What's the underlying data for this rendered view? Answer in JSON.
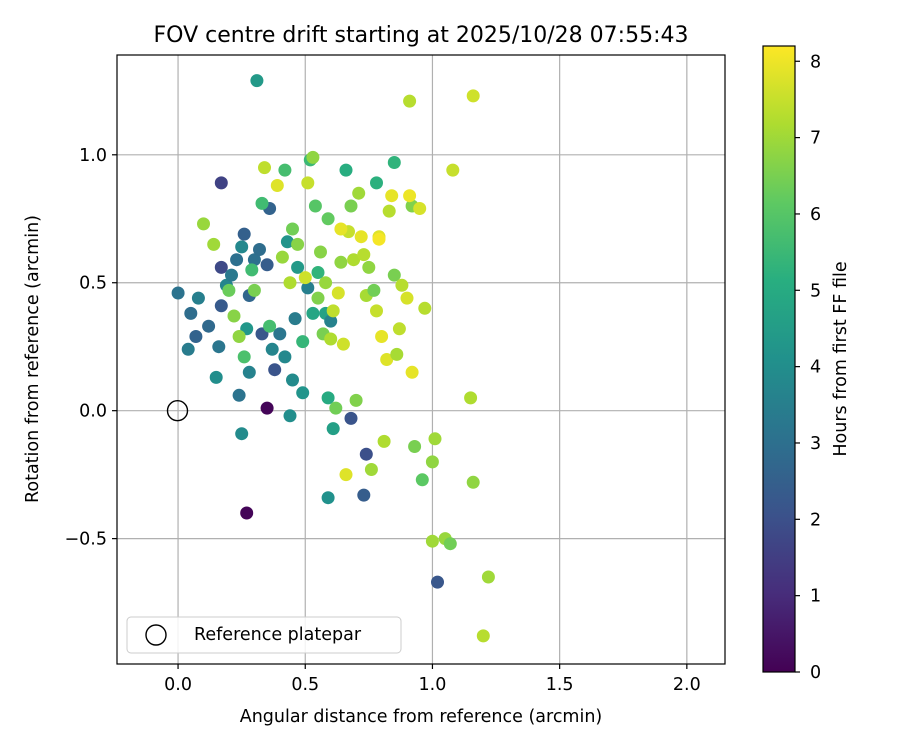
{
  "chart_data": {
    "type": "scatter",
    "title": "FOV centre drift starting at 2025/10/28 07:55:43",
    "xlabel": "Angular distance from reference (arcmin)",
    "ylabel": "Rotation from reference (arcmin)",
    "xlim": [
      -0.24,
      2.15
    ],
    "ylim": [
      -0.99,
      1.39
    ],
    "xticks": [
      0.0,
      0.5,
      1.0,
      1.5,
      2.0
    ],
    "xtick_labels": [
      "0.0",
      "0.5",
      "1.0",
      "1.5",
      "2.0"
    ],
    "yticks": [
      -0.5,
      0.0,
      0.5,
      1.0
    ],
    "ytick_labels": [
      "−0.5",
      "0.0",
      "0.5",
      "1.0"
    ],
    "grid": true,
    "colorbar": {
      "label": "Hours from first FF file",
      "range": [
        0,
        8.2
      ],
      "ticks": [
        0,
        1,
        2,
        3,
        4,
        5,
        6,
        7,
        8
      ],
      "tick_labels": [
        "0",
        "1",
        "2",
        "3",
        "4",
        "5",
        "6",
        "7",
        "8"
      ],
      "colormap": "viridis"
    },
    "legend": {
      "label": "Reference platepar",
      "position": "lower-left"
    },
    "reference_point": {
      "x": 0.0,
      "y": 0.0
    },
    "points": [
      {
        "x": 0.27,
        "y": -0.4,
        "h": 0.1
      },
      {
        "x": 0.35,
        "y": 0.01,
        "h": 0.1
      },
      {
        "x": 0.17,
        "y": 0.89,
        "h": 1.6
      },
      {
        "x": 1.02,
        "y": -0.67,
        "h": 2.2
      },
      {
        "x": 0.74,
        "y": -0.17,
        "h": 2.0
      },
      {
        "x": 0.68,
        "y": -0.03,
        "h": 2.1
      },
      {
        "x": 0.73,
        "y": -0.33,
        "h": 2.4
      },
      {
        "x": 0.25,
        "y": -0.09,
        "h": 3.9
      },
      {
        "x": 0.31,
        "y": 1.29,
        "h": 4.4
      },
      {
        "x": 0.59,
        "y": -0.34,
        "h": 4.1
      },
      {
        "x": 0.61,
        "y": -0.07,
        "h": 4.6
      },
      {
        "x": 0.0,
        "y": 0.46,
        "h": 3.1
      },
      {
        "x": 0.04,
        "y": 0.24,
        "h": 3.4
      },
      {
        "x": 0.05,
        "y": 0.38,
        "h": 2.9
      },
      {
        "x": 0.07,
        "y": 0.29,
        "h": 2.6
      },
      {
        "x": 0.08,
        "y": 0.44,
        "h": 3.5
      },
      {
        "x": 0.12,
        "y": 0.33,
        "h": 2.8
      },
      {
        "x": 0.15,
        "y": 0.13,
        "h": 4.0
      },
      {
        "x": 0.16,
        "y": 0.25,
        "h": 3.2
      },
      {
        "x": 0.17,
        "y": 0.56,
        "h": 1.8
      },
      {
        "x": 0.17,
        "y": 0.41,
        "h": 2.3
      },
      {
        "x": 0.19,
        "y": 0.49,
        "h": 3.7
      },
      {
        "x": 0.21,
        "y": 0.53,
        "h": 3.3
      },
      {
        "x": 0.23,
        "y": 0.59,
        "h": 3.0
      },
      {
        "x": 0.24,
        "y": 0.06,
        "h": 3.1
      },
      {
        "x": 0.25,
        "y": 0.64,
        "h": 3.8
      },
      {
        "x": 0.26,
        "y": 0.69,
        "h": 2.5
      },
      {
        "x": 0.27,
        "y": 0.32,
        "h": 4.3
      },
      {
        "x": 0.28,
        "y": 0.15,
        "h": 3.6
      },
      {
        "x": 0.28,
        "y": 0.45,
        "h": 2.7
      },
      {
        "x": 0.3,
        "y": 0.59,
        "h": 3.0
      },
      {
        "x": 0.32,
        "y": 0.63,
        "h": 2.9
      },
      {
        "x": 0.33,
        "y": 0.3,
        "h": 2.2
      },
      {
        "x": 0.35,
        "y": 0.57,
        "h": 2.4
      },
      {
        "x": 0.36,
        "y": 0.79,
        "h": 2.6
      },
      {
        "x": 0.37,
        "y": 0.24,
        "h": 3.7
      },
      {
        "x": 0.38,
        "y": 0.16,
        "h": 2.1
      },
      {
        "x": 0.4,
        "y": 0.3,
        "h": 3.2
      },
      {
        "x": 0.42,
        "y": 0.21,
        "h": 3.8
      },
      {
        "x": 0.43,
        "y": 0.66,
        "h": 4.2
      },
      {
        "x": 0.44,
        "y": -0.02,
        "h": 4.0
      },
      {
        "x": 0.45,
        "y": 0.12,
        "h": 3.9
      },
      {
        "x": 0.46,
        "y": 0.36,
        "h": 3.4
      },
      {
        "x": 0.47,
        "y": 0.56,
        "h": 4.4
      },
      {
        "x": 0.49,
        "y": 0.07,
        "h": 4.2
      },
      {
        "x": 0.51,
        "y": 0.48,
        "h": 3.5
      },
      {
        "x": 0.53,
        "y": 0.38,
        "h": 4.8
      },
      {
        "x": 0.55,
        "y": 0.54,
        "h": 5.3
      },
      {
        "x": 0.58,
        "y": 0.38,
        "h": 4.7
      },
      {
        "x": 0.59,
        "y": 0.05,
        "h": 5.0
      },
      {
        "x": 0.6,
        "y": 0.35,
        "h": 3.6
      },
      {
        "x": 0.66,
        "y": 0.94,
        "h": 5.1
      },
      {
        "x": 0.78,
        "y": 0.89,
        "h": 5.2
      },
      {
        "x": 0.85,
        "y": 0.97,
        "h": 5.3
      },
      {
        "x": 0.1,
        "y": 0.73,
        "h": 6.9
      },
      {
        "x": 0.14,
        "y": 0.65,
        "h": 7.0
      },
      {
        "x": 0.2,
        "y": 0.47,
        "h": 6.3
      },
      {
        "x": 0.22,
        "y": 0.37,
        "h": 6.7
      },
      {
        "x": 0.24,
        "y": 0.29,
        "h": 6.8
      },
      {
        "x": 0.26,
        "y": 0.21,
        "h": 5.8
      },
      {
        "x": 0.29,
        "y": 0.55,
        "h": 5.6
      },
      {
        "x": 0.3,
        "y": 0.47,
        "h": 6.5
      },
      {
        "x": 0.33,
        "y": 0.81,
        "h": 5.6
      },
      {
        "x": 0.34,
        "y": 0.95,
        "h": 7.4
      },
      {
        "x": 0.36,
        "y": 0.33,
        "h": 5.7
      },
      {
        "x": 0.39,
        "y": 0.88,
        "h": 7.8
      },
      {
        "x": 0.41,
        "y": 0.6,
        "h": 6.9
      },
      {
        "x": 0.42,
        "y": 0.94,
        "h": 5.7
      },
      {
        "x": 0.44,
        "y": 0.5,
        "h": 7.2
      },
      {
        "x": 0.45,
        "y": 0.71,
        "h": 6.4
      },
      {
        "x": 0.47,
        "y": 0.65,
        "h": 6.7
      },
      {
        "x": 0.49,
        "y": 0.27,
        "h": 5.4
      },
      {
        "x": 0.5,
        "y": 0.52,
        "h": 7.6
      },
      {
        "x": 0.51,
        "y": 0.89,
        "h": 7.5
      },
      {
        "x": 0.52,
        "y": 0.98,
        "h": 5.5
      },
      {
        "x": 0.53,
        "y": 0.99,
        "h": 6.8
      },
      {
        "x": 0.54,
        "y": 0.8,
        "h": 6.0
      },
      {
        "x": 0.55,
        "y": 0.44,
        "h": 6.6
      },
      {
        "x": 0.56,
        "y": 0.62,
        "h": 6.7
      },
      {
        "x": 0.57,
        "y": 0.3,
        "h": 6.5
      },
      {
        "x": 0.58,
        "y": 0.5,
        "h": 6.9
      },
      {
        "x": 0.59,
        "y": 0.75,
        "h": 6.2
      },
      {
        "x": 0.6,
        "y": 0.28,
        "h": 7.2
      },
      {
        "x": 0.61,
        "y": 0.39,
        "h": 7.4
      },
      {
        "x": 0.62,
        "y": 0.01,
        "h": 6.4
      },
      {
        "x": 0.63,
        "y": 0.46,
        "h": 7.7
      },
      {
        "x": 0.64,
        "y": 0.58,
        "h": 6.8
      },
      {
        "x": 0.65,
        "y": 0.26,
        "h": 7.6
      },
      {
        "x": 0.66,
        "y": -0.25,
        "h": 7.8
      },
      {
        "x": 0.67,
        "y": 0.7,
        "h": 7.5
      },
      {
        "x": 0.68,
        "y": 0.8,
        "h": 6.5
      },
      {
        "x": 0.69,
        "y": 0.59,
        "h": 7.2
      },
      {
        "x": 0.7,
        "y": 0.04,
        "h": 6.6
      },
      {
        "x": 0.71,
        "y": 0.85,
        "h": 7.0
      },
      {
        "x": 0.72,
        "y": 0.68,
        "h": 7.9
      },
      {
        "x": 0.73,
        "y": 0.61,
        "h": 7.3
      },
      {
        "x": 0.74,
        "y": 0.45,
        "h": 7.1
      },
      {
        "x": 0.75,
        "y": 0.56,
        "h": 6.8
      },
      {
        "x": 0.76,
        "y": -0.23,
        "h": 7.0
      },
      {
        "x": 0.77,
        "y": 0.47,
        "h": 6.4
      },
      {
        "x": 0.78,
        "y": 0.39,
        "h": 7.5
      },
      {
        "x": 0.79,
        "y": 0.68,
        "h": 7.8
      },
      {
        "x": 0.8,
        "y": 0.29,
        "h": 7.9
      },
      {
        "x": 0.81,
        "y": -0.12,
        "h": 7.2
      },
      {
        "x": 0.82,
        "y": 0.2,
        "h": 7.8
      },
      {
        "x": 0.83,
        "y": 0.78,
        "h": 7.3
      },
      {
        "x": 0.84,
        "y": 0.84,
        "h": 7.9
      },
      {
        "x": 0.85,
        "y": 0.53,
        "h": 6.5
      },
      {
        "x": 0.86,
        "y": 0.22,
        "h": 7.1
      },
      {
        "x": 0.87,
        "y": 0.32,
        "h": 7.4
      },
      {
        "x": 0.88,
        "y": 0.49,
        "h": 7.3
      },
      {
        "x": 0.9,
        "y": 0.44,
        "h": 7.7
      },
      {
        "x": 0.92,
        "y": 0.15,
        "h": 7.9
      },
      {
        "x": 0.92,
        "y": 0.8,
        "h": 6.6
      },
      {
        "x": 0.93,
        "y": -0.14,
        "h": 6.5
      },
      {
        "x": 0.95,
        "y": 0.79,
        "h": 7.7
      },
      {
        "x": 0.96,
        "y": -0.27,
        "h": 6.1
      },
      {
        "x": 0.97,
        "y": 0.4,
        "h": 7.3
      },
      {
        "x": 1.0,
        "y": -0.51,
        "h": 7.0
      },
      {
        "x": 1.0,
        "y": -0.2,
        "h": 6.8
      },
      {
        "x": 1.01,
        "y": -0.11,
        "h": 7.0
      },
      {
        "x": 1.05,
        "y": -0.5,
        "h": 6.9
      },
      {
        "x": 1.07,
        "y": -0.52,
        "h": 6.4
      },
      {
        "x": 1.08,
        "y": 0.94,
        "h": 7.5
      },
      {
        "x": 1.15,
        "y": 0.05,
        "h": 7.2
      },
      {
        "x": 1.16,
        "y": 1.23,
        "h": 7.6
      },
      {
        "x": 1.16,
        "y": -0.28,
        "h": 6.8
      },
      {
        "x": 0.91,
        "y": 1.21,
        "h": 7.3
      },
      {
        "x": 1.2,
        "y": -0.88,
        "h": 7.3
      },
      {
        "x": 1.22,
        "y": -0.65,
        "h": 7.0
      },
      {
        "x": 0.91,
        "y": 0.84,
        "h": 8.0
      },
      {
        "x": 0.79,
        "y": 0.67,
        "h": 8.1
      },
      {
        "x": 0.64,
        "y": 0.71,
        "h": 7.9
      }
    ]
  }
}
